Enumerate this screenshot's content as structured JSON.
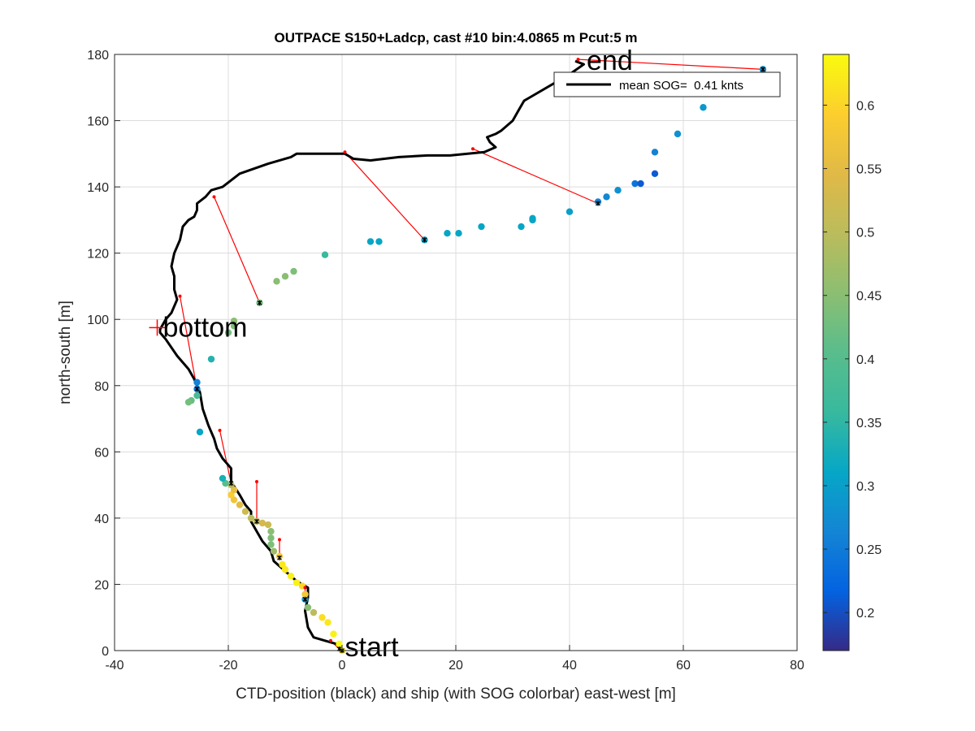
{
  "chart_data": {
    "type": "line",
    "title": "OUTPACE S150+Ladcp, cast #10 bin:4.0865 m  Pcut:5 m",
    "xlabel": "CTD-position (black) and ship (with SOG colorbar) east-west [m]",
    "ylabel": "north-south [m]",
    "xlim": [
      -40,
      80
    ],
    "ylim": [
      0,
      180
    ],
    "xticks": [
      -40,
      -20,
      0,
      20,
      40,
      60,
      80
    ],
    "yticks": [
      0,
      20,
      40,
      60,
      80,
      100,
      120,
      140,
      160,
      180
    ],
    "grid": true,
    "legend": {
      "location": "top-right",
      "entries": [
        "mean SOG=  0.41 knts"
      ]
    },
    "colorbar": {
      "clim": [
        0.17,
        0.64
      ],
      "ticks": [
        0.2,
        0.25,
        0.3,
        0.35,
        0.4,
        0.45,
        0.5,
        0.55,
        0.6
      ],
      "colormap": "parula"
    },
    "annotations": [
      {
        "text": "start",
        "x": 0.5,
        "y": 1
      },
      {
        "text": "bottom",
        "x": -31.5,
        "y": 97.5
      },
      {
        "text": "end",
        "x": 43,
        "y": 178
      }
    ],
    "bottom_marker": {
      "x": -32.5,
      "y": 97.5
    },
    "ctd_track": [
      [
        0,
        0
      ],
      [
        -1,
        2
      ],
      [
        -3,
        3
      ],
      [
        -5,
        4
      ],
      [
        -6,
        7
      ],
      [
        -6.5,
        12
      ],
      [
        -6,
        16
      ],
      [
        -6,
        19
      ],
      [
        -8,
        21
      ],
      [
        -10,
        24
      ],
      [
        -12,
        27
      ],
      [
        -12.5,
        30
      ],
      [
        -14,
        33
      ],
      [
        -15,
        36
      ],
      [
        -16,
        39
      ],
      [
        -16,
        42
      ],
      [
        -17,
        44
      ],
      [
        -18,
        47
      ],
      [
        -19.5,
        51
      ],
      [
        -19.5,
        55
      ],
      [
        -21,
        58
      ],
      [
        -22,
        61
      ],
      [
        -22.5,
        64
      ],
      [
        -23.5,
        68
      ],
      [
        -24.5,
        73
      ],
      [
        -25,
        78
      ],
      [
        -26,
        82
      ],
      [
        -27,
        85
      ],
      [
        -29,
        89
      ],
      [
        -31,
        94
      ],
      [
        -32,
        96
      ],
      [
        -32,
        97
      ],
      [
        -31,
        100
      ],
      [
        -30,
        102
      ],
      [
        -29,
        106
      ],
      [
        -29.5,
        109
      ],
      [
        -29.5,
        113
      ],
      [
        -30,
        116
      ],
      [
        -29.5,
        120
      ],
      [
        -28.5,
        124
      ],
      [
        -28,
        128
      ],
      [
        -27,
        130
      ],
      [
        -26,
        131
      ],
      [
        -25.5,
        133
      ],
      [
        -25.5,
        135
      ],
      [
        -24,
        137
      ],
      [
        -23,
        139
      ],
      [
        -21,
        140
      ],
      [
        -18,
        144
      ],
      [
        -13,
        147
      ],
      [
        -9,
        149
      ],
      [
        -8,
        150
      ],
      [
        -3,
        150
      ],
      [
        0.5,
        150
      ],
      [
        2,
        148.5
      ],
      [
        5,
        148
      ],
      [
        10,
        149
      ],
      [
        15,
        149.5
      ],
      [
        19,
        149.5
      ],
      [
        25,
        150.5
      ],
      [
        27,
        152
      ],
      [
        26,
        153.5
      ],
      [
        25.5,
        155
      ],
      [
        27,
        156
      ],
      [
        28,
        157
      ],
      [
        30,
        160
      ],
      [
        31,
        163
      ],
      [
        32,
        166
      ],
      [
        33,
        167
      ],
      [
        37,
        171
      ],
      [
        40,
        174
      ],
      [
        42.5,
        177
      ],
      [
        41,
        178
      ]
    ],
    "ship_track": [
      {
        "x": 0,
        "y": 0,
        "sog": 0.63
      },
      {
        "x": -0.5,
        "y": 2,
        "sog": 0.64
      },
      {
        "x": -1.5,
        "y": 5,
        "sog": 0.63
      },
      {
        "x": -2.5,
        "y": 8.5,
        "sog": 0.62
      },
      {
        "x": -3.5,
        "y": 10,
        "sog": 0.61
      },
      {
        "x": -5,
        "y": 11.5,
        "sog": 0.5
      },
      {
        "x": -6,
        "y": 13,
        "sog": 0.45
      },
      {
        "x": -6.5,
        "y": 15.5,
        "sog": 0.28
      },
      {
        "x": -6.5,
        "y": 17,
        "sog": 0.58
      },
      {
        "x": -7,
        "y": 19.5,
        "sog": 0.6
      },
      {
        "x": -8,
        "y": 20.5,
        "sog": 0.63
      },
      {
        "x": -9,
        "y": 22.5,
        "sog": 0.63
      },
      {
        "x": -10,
        "y": 24.5,
        "sog": 0.62
      },
      {
        "x": -10.5,
        "y": 26,
        "sog": 0.62
      },
      {
        "x": -11,
        "y": 28.5,
        "sog": 0.58
      },
      {
        "x": -12,
        "y": 30,
        "sog": 0.47
      },
      {
        "x": -12.5,
        "y": 32,
        "sog": 0.44
      },
      {
        "x": -12.5,
        "y": 34,
        "sog": 0.44
      },
      {
        "x": -12.5,
        "y": 36,
        "sog": 0.45
      },
      {
        "x": -13,
        "y": 38,
        "sog": 0.52
      },
      {
        "x": -14,
        "y": 38.5,
        "sog": 0.53
      },
      {
        "x": -15,
        "y": 39,
        "sog": 0.5
      },
      {
        "x": -16,
        "y": 40,
        "sog": 0.5
      },
      {
        "x": -17,
        "y": 42,
        "sog": 0.52
      },
      {
        "x": -18,
        "y": 44,
        "sog": 0.55
      },
      {
        "x": -19,
        "y": 45.5,
        "sog": 0.57
      },
      {
        "x": -19.5,
        "y": 47,
        "sog": 0.59
      },
      {
        "x": -19,
        "y": 48.5,
        "sog": 0.56
      },
      {
        "x": -19.5,
        "y": 50,
        "sog": 0.5
      },
      {
        "x": -20.5,
        "y": 50.5,
        "sog": 0.4
      },
      {
        "x": -21,
        "y": 52,
        "sog": 0.33
      },
      {
        "x": -25,
        "y": 66,
        "sog": 0.31
      },
      {
        "x": -25.5,
        "y": 77,
        "sog": 0.38
      },
      {
        "x": -26.5,
        "y": 75.5,
        "sog": 0.42
      },
      {
        "x": -27,
        "y": 75,
        "sog": 0.43
      },
      {
        "x": -25.5,
        "y": 79,
        "sog": 0.25
      },
      {
        "x": -25.5,
        "y": 81,
        "sog": 0.26
      },
      {
        "x": -23,
        "y": 88,
        "sog": 0.34
      },
      {
        "x": -20,
        "y": 96,
        "sog": 0.43
      },
      {
        "x": -19,
        "y": 98,
        "sog": 0.44
      },
      {
        "x": -19,
        "y": 99.5,
        "sog": 0.45
      },
      {
        "x": -14.5,
        "y": 105,
        "sog": 0.43
      },
      {
        "x": -11.5,
        "y": 111.5,
        "sog": 0.45
      },
      {
        "x": -10,
        "y": 113,
        "sog": 0.45
      },
      {
        "x": -8.5,
        "y": 114.5,
        "sog": 0.44
      },
      {
        "x": -3,
        "y": 119.5,
        "sog": 0.36
      },
      {
        "x": 5,
        "y": 123.5,
        "sog": 0.31
      },
      {
        "x": 6.5,
        "y": 123.5,
        "sog": 0.31
      },
      {
        "x": 14.5,
        "y": 124,
        "sog": 0.3
      },
      {
        "x": 18.5,
        "y": 126,
        "sog": 0.31
      },
      {
        "x": 20.5,
        "y": 126,
        "sog": 0.31
      },
      {
        "x": 24.5,
        "y": 128,
        "sog": 0.31
      },
      {
        "x": 31.5,
        "y": 128,
        "sog": 0.31
      },
      {
        "x": 33.5,
        "y": 130,
        "sog": 0.31
      },
      {
        "x": 33.5,
        "y": 130.5,
        "sog": 0.31
      },
      {
        "x": 40,
        "y": 132.5,
        "sog": 0.3
      },
      {
        "x": 45,
        "y": 135.5,
        "sog": 0.26
      },
      {
        "x": 46.5,
        "y": 137,
        "sog": 0.27
      },
      {
        "x": 48.5,
        "y": 139,
        "sog": 0.28
      },
      {
        "x": 51.5,
        "y": 141,
        "sog": 0.24
      },
      {
        "x": 52.5,
        "y": 141,
        "sog": 0.21
      },
      {
        "x": 55,
        "y": 144,
        "sog": 0.21
      },
      {
        "x": 55,
        "y": 150.5,
        "sog": 0.26
      },
      {
        "x": 59,
        "y": 156,
        "sog": 0.28
      },
      {
        "x": 63.5,
        "y": 164,
        "sog": 0.29
      },
      {
        "x": 74,
        "y": 175.5,
        "sog": 0.28
      }
    ],
    "links": [
      {
        "ctd": [
          0,
          0
        ],
        "ship": [
          0,
          0
        ]
      },
      {
        "ctd": [
          -2,
          3
        ],
        "ship": [
          -0.5,
          0.5
        ]
      },
      {
        "ctd": [
          -6.5,
          19
        ],
        "ship": [
          -6.5,
          15.5
        ]
      },
      {
        "ctd": [
          -11,
          33.5
        ],
        "ship": [
          -11,
          28
        ]
      },
      {
        "ctd": [
          -15,
          51
        ],
        "ship": [
          -15,
          39
        ]
      },
      {
        "ctd": [
          -21.5,
          66.5
        ],
        "ship": [
          -19.5,
          50.5
        ]
      },
      {
        "ctd": [
          -28.5,
          107
        ],
        "ship": [
          -25.5,
          79
        ]
      },
      {
        "ctd": [
          -22.5,
          137
        ],
        "ship": [
          -14.5,
          105
        ]
      },
      {
        "ctd": [
          0.5,
          150.5
        ],
        "ship": [
          14.5,
          124
        ]
      },
      {
        "ctd": [
          23,
          151.5
        ],
        "ship": [
          45,
          135
        ]
      },
      {
        "ctd": [
          41.5,
          178.5
        ],
        "ship": [
          74,
          175.5
        ]
      }
    ]
  }
}
